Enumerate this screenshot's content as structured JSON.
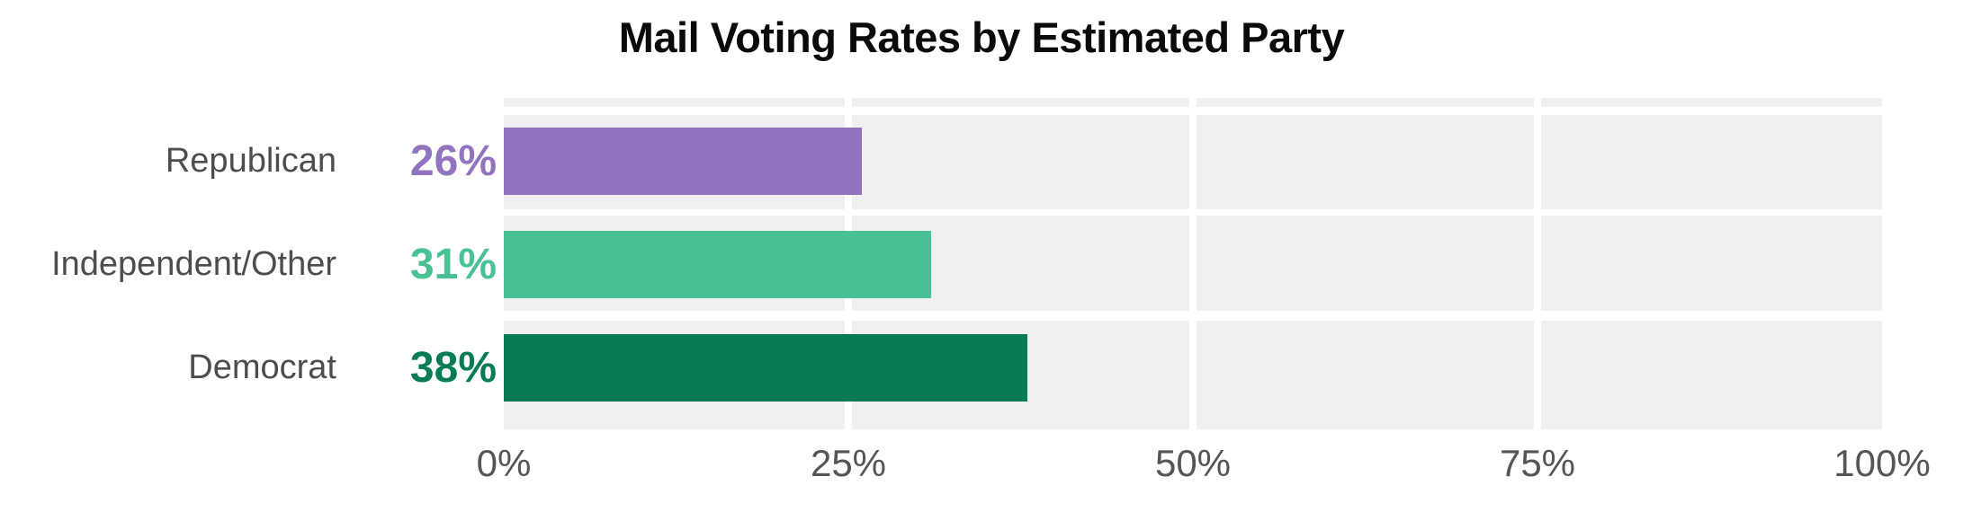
{
  "title": "Mail Voting Rates by Estimated Party",
  "colors": {
    "background": "#ffffff",
    "band_background": "#f0f0f0",
    "gridline": "#ffffff",
    "title_text": "#0a0a0a",
    "category_label_text": "#4d4d4d",
    "axis_tick_text": "#555555"
  },
  "chart_data": {
    "type": "bar",
    "orientation": "horizontal",
    "title": "Mail Voting Rates by Estimated Party",
    "xlabel": "",
    "ylabel": "",
    "xlim": [
      0,
      100
    ],
    "grid": "white vertical gridlines at 25/50/75 over light-gray row bands",
    "legend_position": "none",
    "category_order": "top-to-bottom",
    "categories": [
      "Republican",
      "Independent/Other",
      "Democrat"
    ],
    "values": [
      26,
      31,
      38
    ],
    "series": [
      {
        "name": "Republican",
        "value": 26,
        "value_label": "26%",
        "bar_color": "#9273bf"
      },
      {
        "name": "Independent/Other",
        "value": 31,
        "value_label": "31%",
        "bar_color": "#48c195"
      },
      {
        "name": "Democrat",
        "value": 38,
        "value_label": "38%",
        "bar_color": "#077c54"
      }
    ],
    "x_ticks": [
      {
        "value": 0,
        "label": "0%"
      },
      {
        "value": 25,
        "label": "25%"
      },
      {
        "value": 50,
        "label": "50%"
      },
      {
        "value": 75,
        "label": "75%"
      },
      {
        "value": 100,
        "label": "100%"
      }
    ],
    "gridline_values": [
      25,
      50,
      75
    ]
  }
}
